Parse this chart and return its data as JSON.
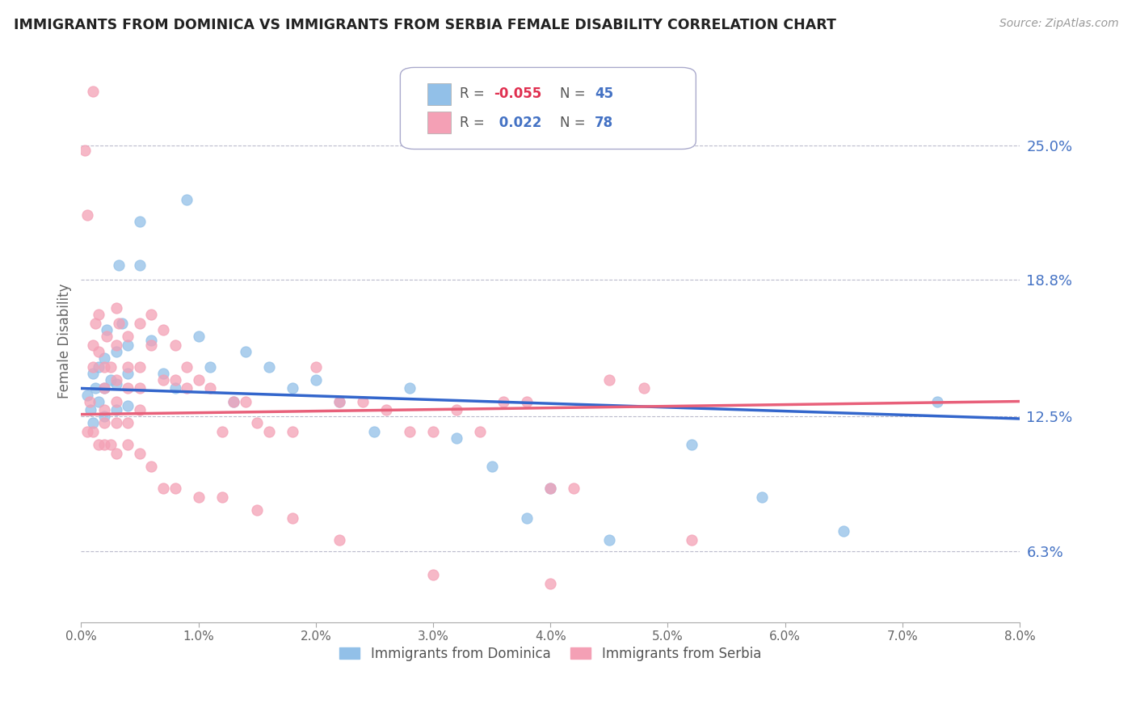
{
  "title": "IMMIGRANTS FROM DOMINICA VS IMMIGRANTS FROM SERBIA FEMALE DISABILITY CORRELATION CHART",
  "source": "Source: ZipAtlas.com",
  "ylabel": "Female Disability",
  "xlim": [
    0.0,
    0.08
  ],
  "ylim": [
    0.03,
    0.29
  ],
  "xticks": [
    0.0,
    0.01,
    0.02,
    0.03,
    0.04,
    0.05,
    0.06,
    0.07,
    0.08
  ],
  "xticklabels": [
    "0.0%",
    "1.0%",
    "2.0%",
    "3.0%",
    "4.0%",
    "5.0%",
    "6.0%",
    "7.0%",
    "8.0%"
  ],
  "yticks_right": [
    0.063,
    0.125,
    0.188,
    0.25
  ],
  "yticklabels_right": [
    "6.3%",
    "12.5%",
    "18.8%",
    "25.0%"
  ],
  "hlines": [
    0.063,
    0.125,
    0.188,
    0.25
  ],
  "color_dominica": "#92C0E8",
  "color_serbia": "#F4A0B5",
  "line_color_dominica": "#3366CC",
  "line_color_serbia": "#E8607A",
  "legend_r_dominica": "-0.055",
  "legend_n_dominica": "45",
  "legend_r_serbia": "0.022",
  "legend_n_serbia": "78",
  "label_dominica": "Immigrants from Dominica",
  "label_serbia": "Immigrants from Serbia",
  "dominica_x": [
    0.0005,
    0.0008,
    0.001,
    0.001,
    0.0012,
    0.0015,
    0.0015,
    0.002,
    0.002,
    0.002,
    0.0022,
    0.0025,
    0.003,
    0.003,
    0.003,
    0.0032,
    0.0035,
    0.004,
    0.004,
    0.004,
    0.005,
    0.005,
    0.006,
    0.007,
    0.008,
    0.009,
    0.01,
    0.011,
    0.013,
    0.014,
    0.016,
    0.018,
    0.02,
    0.022,
    0.025,
    0.028,
    0.032,
    0.035,
    0.038,
    0.04,
    0.045,
    0.052,
    0.058,
    0.065,
    0.073
  ],
  "dominica_y": [
    0.135,
    0.128,
    0.145,
    0.122,
    0.138,
    0.148,
    0.132,
    0.152,
    0.138,
    0.125,
    0.165,
    0.142,
    0.155,
    0.14,
    0.128,
    0.195,
    0.168,
    0.158,
    0.145,
    0.13,
    0.215,
    0.195,
    0.16,
    0.145,
    0.138,
    0.225,
    0.162,
    0.148,
    0.132,
    0.155,
    0.148,
    0.138,
    0.142,
    0.132,
    0.118,
    0.138,
    0.115,
    0.102,
    0.078,
    0.092,
    0.068,
    0.112,
    0.088,
    0.072,
    0.132
  ],
  "serbia_x": [
    0.0003,
    0.0005,
    0.0007,
    0.001,
    0.001,
    0.001,
    0.0012,
    0.0015,
    0.0015,
    0.002,
    0.002,
    0.002,
    0.002,
    0.0022,
    0.0025,
    0.003,
    0.003,
    0.003,
    0.003,
    0.003,
    0.0032,
    0.004,
    0.004,
    0.004,
    0.004,
    0.005,
    0.005,
    0.005,
    0.005,
    0.006,
    0.006,
    0.007,
    0.007,
    0.008,
    0.008,
    0.009,
    0.009,
    0.01,
    0.011,
    0.012,
    0.013,
    0.014,
    0.015,
    0.016,
    0.018,
    0.02,
    0.022,
    0.024,
    0.026,
    0.028,
    0.03,
    0.032,
    0.034,
    0.036,
    0.038,
    0.04,
    0.042,
    0.045,
    0.048,
    0.052,
    0.0005,
    0.001,
    0.0015,
    0.002,
    0.0025,
    0.003,
    0.004,
    0.005,
    0.006,
    0.007,
    0.008,
    0.01,
    0.012,
    0.015,
    0.018,
    0.022,
    0.03,
    0.04
  ],
  "serbia_y": [
    0.248,
    0.218,
    0.132,
    0.275,
    0.158,
    0.148,
    0.168,
    0.172,
    0.155,
    0.148,
    0.138,
    0.128,
    0.122,
    0.162,
    0.148,
    0.175,
    0.158,
    0.142,
    0.132,
    0.122,
    0.168,
    0.162,
    0.148,
    0.138,
    0.122,
    0.168,
    0.148,
    0.138,
    0.128,
    0.172,
    0.158,
    0.165,
    0.142,
    0.158,
    0.142,
    0.148,
    0.138,
    0.142,
    0.138,
    0.118,
    0.132,
    0.132,
    0.122,
    0.118,
    0.118,
    0.148,
    0.132,
    0.132,
    0.128,
    0.118,
    0.118,
    0.128,
    0.118,
    0.132,
    0.132,
    0.092,
    0.092,
    0.142,
    0.138,
    0.068,
    0.118,
    0.118,
    0.112,
    0.112,
    0.112,
    0.108,
    0.112,
    0.108,
    0.102,
    0.092,
    0.092,
    0.088,
    0.088,
    0.082,
    0.078,
    0.068,
    0.052,
    0.048
  ]
}
